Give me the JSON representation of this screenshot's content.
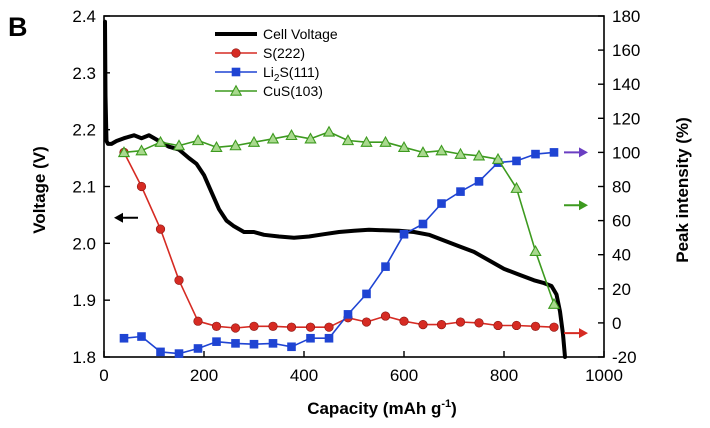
{
  "panel_label": "B",
  "chart_data": {
    "type": "line",
    "xlabel": "Capacity (mAh g-1)",
    "xlabel_main": "Capacity (mAh g",
    "xlabel_sup": "-1",
    "xlabel_end": ")",
    "ylabel_left": "Voltage (V)",
    "ylabel_right": "Peak intensity (%)",
    "xlim": [
      0,
      1000
    ],
    "ylim_left": [
      1.8,
      2.4
    ],
    "ylim_right": [
      -20,
      180
    ],
    "x_ticks": [
      "0",
      "200",
      "400",
      "600",
      "800",
      "1000"
    ],
    "y_left_ticks": [
      "1.8",
      "1.9",
      "2.0",
      "2.1",
      "2.2",
      "2.3",
      "2.4"
    ],
    "y_right_ticks": [
      "-20",
      "0",
      "20",
      "40",
      "60",
      "80",
      "100",
      "120",
      "140",
      "160",
      "180"
    ],
    "grid": false,
    "legend_position": "top-left",
    "legend": [
      {
        "label": "Cell Voltage",
        "label_main": "Cell Voltage",
        "label_sub": "",
        "label_end": ""
      },
      {
        "label": "S(222)",
        "label_main": "S(222)",
        "label_sub": "",
        "label_end": ""
      },
      {
        "label": "Li2S(111)",
        "label_main": "Li",
        "label_sub": "2",
        "label_end": "S(111)"
      },
      {
        "label": "CuS(103)",
        "label_main": "CuS(103)",
        "label_sub": "",
        "label_end": ""
      }
    ],
    "series": [
      {
        "name": "Cell Voltage",
        "axis": "left",
        "color": "#000000",
        "marker": "none",
        "points": [
          [
            2,
            2.39
          ],
          [
            3,
            2.26
          ],
          [
            5,
            2.18
          ],
          [
            8,
            2.175
          ],
          [
            15,
            2.175
          ],
          [
            25,
            2.18
          ],
          [
            40,
            2.185
          ],
          [
            60,
            2.19
          ],
          [
            75,
            2.185
          ],
          [
            90,
            2.19
          ],
          [
            110,
            2.18
          ],
          [
            130,
            2.17
          ],
          [
            150,
            2.165
          ],
          [
            170,
            2.15
          ],
          [
            185,
            2.14
          ],
          [
            200,
            2.12
          ],
          [
            215,
            2.09
          ],
          [
            230,
            2.06
          ],
          [
            245,
            2.04
          ],
          [
            260,
            2.03
          ],
          [
            280,
            2.02
          ],
          [
            300,
            2.02
          ],
          [
            320,
            2.015
          ],
          [
            350,
            2.012
          ],
          [
            380,
            2.01
          ],
          [
            410,
            2.012
          ],
          [
            440,
            2.016
          ],
          [
            470,
            2.02
          ],
          [
            500,
            2.022
          ],
          [
            530,
            2.024
          ],
          [
            560,
            2.023
          ],
          [
            590,
            2.022
          ],
          [
            620,
            2.02
          ],
          [
            650,
            2.015
          ],
          [
            680,
            2.005
          ],
          [
            710,
            1.995
          ],
          [
            740,
            1.985
          ],
          [
            770,
            1.97
          ],
          [
            800,
            1.955
          ],
          [
            830,
            1.945
          ],
          [
            860,
            1.935
          ],
          [
            880,
            1.93
          ],
          [
            895,
            1.925
          ],
          [
            905,
            1.91
          ],
          [
            912,
            1.88
          ],
          [
            918,
            1.84
          ],
          [
            922,
            1.8
          ]
        ]
      },
      {
        "name": "S(222)",
        "axis": "right",
        "color": "#d62b23",
        "marker": "circle",
        "points": [
          [
            40,
            100
          ],
          [
            75,
            80
          ],
          [
            113,
            55
          ],
          [
            150,
            25
          ],
          [
            188,
            1
          ],
          [
            225,
            -2
          ],
          [
            263,
            -3
          ],
          [
            300,
            -2
          ],
          [
            338,
            -2
          ],
          [
            375,
            -2.5
          ],
          [
            413,
            -2.5
          ],
          [
            450,
            -2.5
          ],
          [
            488,
            3
          ],
          [
            525,
            0.5
          ],
          [
            563,
            4
          ],
          [
            600,
            1
          ],
          [
            638,
            -1
          ],
          [
            675,
            -1
          ],
          [
            713,
            0.5
          ],
          [
            750,
            0
          ],
          [
            788,
            -1.5
          ],
          [
            825,
            -1.5
          ],
          [
            863,
            -2
          ],
          [
            900,
            -2.5
          ]
        ]
      },
      {
        "name": "Li2S(111)",
        "axis": "right",
        "color": "#1f44d3",
        "marker": "square",
        "points": [
          [
            40,
            -9
          ],
          [
            75,
            -8
          ],
          [
            113,
            -17
          ],
          [
            150,
            -18
          ],
          [
            188,
            -15
          ],
          [
            225,
            -11
          ],
          [
            263,
            -12
          ],
          [
            300,
            -12.5
          ],
          [
            338,
            -12
          ],
          [
            375,
            -14
          ],
          [
            413,
            -9
          ],
          [
            450,
            -9
          ],
          [
            488,
            5
          ],
          [
            525,
            17
          ],
          [
            563,
            33
          ],
          [
            600,
            52
          ],
          [
            638,
            58
          ],
          [
            675,
            70
          ],
          [
            713,
            77
          ],
          [
            750,
            83
          ],
          [
            788,
            94
          ],
          [
            825,
            95
          ],
          [
            863,
            99
          ],
          [
            900,
            100
          ]
        ]
      },
      {
        "name": "CuS(103)",
        "axis": "right",
        "color": "#3d9a1f",
        "marker": "triangle",
        "points": [
          [
            40,
            100
          ],
          [
            75,
            101
          ],
          [
            113,
            106
          ],
          [
            150,
            104
          ],
          [
            188,
            107
          ],
          [
            225,
            103
          ],
          [
            263,
            104
          ],
          [
            300,
            106
          ],
          [
            338,
            108
          ],
          [
            375,
            110
          ],
          [
            413,
            108
          ],
          [
            450,
            112
          ],
          [
            488,
            107
          ],
          [
            525,
            106
          ],
          [
            563,
            106
          ],
          [
            600,
            103
          ],
          [
            638,
            100
          ],
          [
            675,
            101
          ],
          [
            713,
            99
          ],
          [
            750,
            98
          ],
          [
            788,
            96
          ],
          [
            825,
            79
          ],
          [
            863,
            42
          ],
          [
            900,
            11
          ]
        ]
      }
    ],
    "arrows": [
      {
        "direction": "left",
        "color": "#000000",
        "x": 20,
        "y": 2.045,
        "axis": "left"
      },
      {
        "direction": "right",
        "color": "#6a3ec2",
        "x": 968,
        "y": 100,
        "axis": "right"
      },
      {
        "direction": "right",
        "color": "#3d9a1f",
        "x": 968,
        "y": 69,
        "axis": "right"
      },
      {
        "direction": "right",
        "color": "#d62b23",
        "x": 968,
        "y": -6,
        "axis": "right"
      }
    ]
  }
}
